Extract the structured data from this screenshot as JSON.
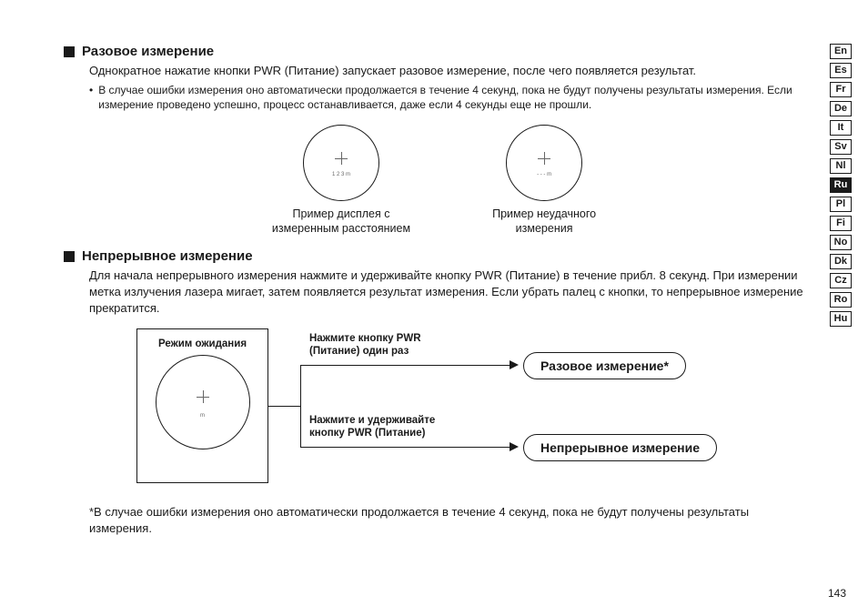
{
  "lang_tabs": [
    "En",
    "Es",
    "Fr",
    "De",
    "It",
    "Sv",
    "Nl",
    "Ru",
    "Pl",
    "Fi",
    "No",
    "Dk",
    "Cz",
    "Ro",
    "Hu"
  ],
  "active_lang": "Ru",
  "section1": {
    "title": "Разовое измерение",
    "body": "Однократное нажатие кнопки PWR (Питание) запускает разовое измерение, после чего появляется результат.",
    "bullet": "В случае ошибки измерения оно автоматически продолжается в течение 4 секунд, пока не будут получены результаты измерения. Если измерение проведено успешно, процесс останавливается, даже если 4 секунды еще не прошли.",
    "display1_reading": "1 2 3 m",
    "display1_caption_l1": "Пример дисплея с",
    "display1_caption_l2": "измеренным расстоянием",
    "display2_reading": "- - - m",
    "display2_caption_l1": "Пример неудачного",
    "display2_caption_l2": "измерения"
  },
  "section2": {
    "title": "Непрерывное измерение",
    "body": "Для начала непрерывного измерения нажмите и удерживайте кнопку PWR (Питание) в течение прибл. 8 секунд.  При измерении метка излучения лазера мигает, затем появляется результат измерения. Если убрать палец с кнопки, то непрерывное измерение прекратится."
  },
  "flow": {
    "standby_label": "Режим ожидания",
    "standby_reading": "m",
    "action1_l1": "Нажмите кнопку PWR",
    "action1_l2": "(Питание) один раз",
    "action2_l1": "Нажмите и удерживайте",
    "action2_l2": "кнопку PWR (Питание)",
    "pill1": "Разовое измерение*",
    "pill2": "Непрерывное измерение"
  },
  "footnote": "*В случае ошибки измерения оно автоматически продолжается в течение 4 секунд, пока не будут получены результаты измерения.",
  "page_number": "143"
}
